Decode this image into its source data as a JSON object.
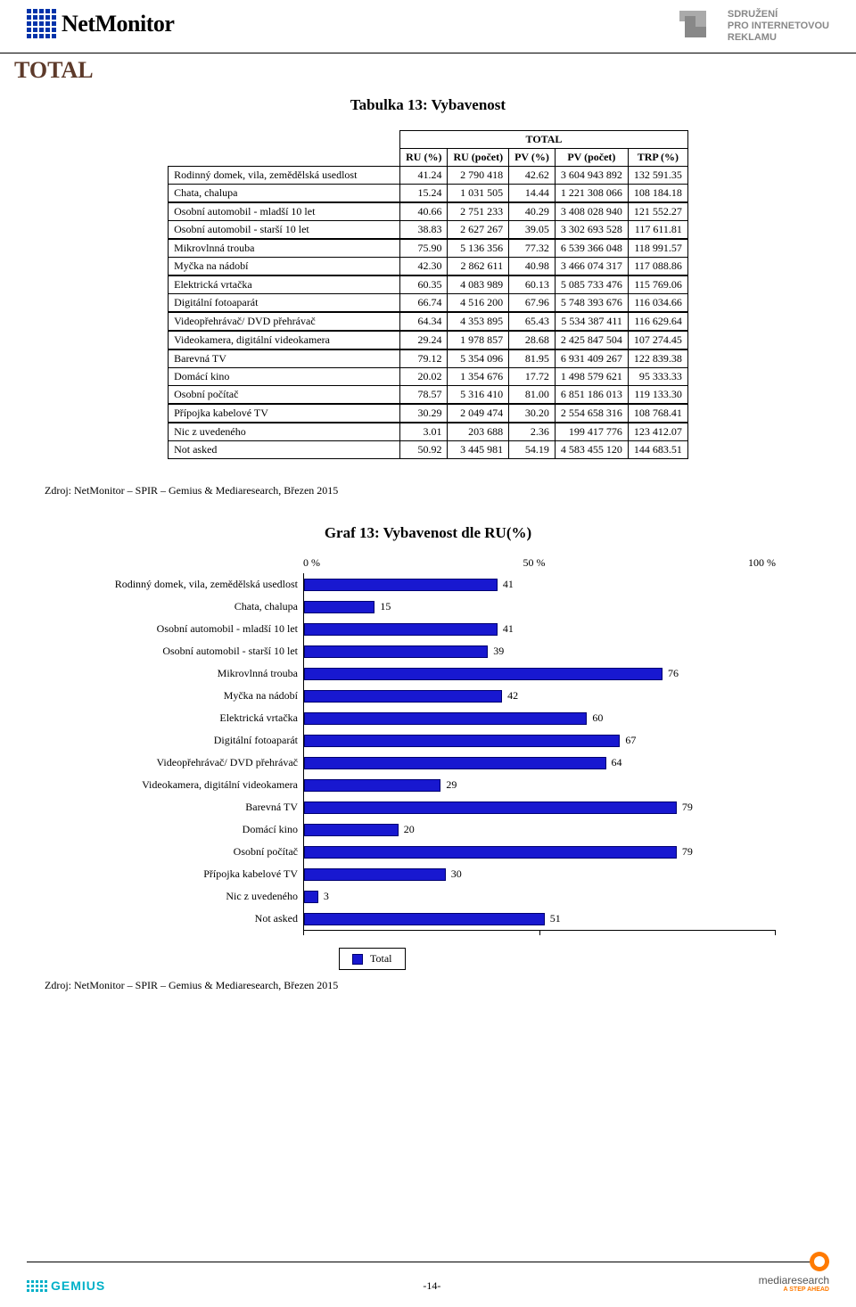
{
  "header": {
    "logo_text": "NetMonitor",
    "spir_line1": "SDRUŽENÍ",
    "spir_line2": "PRO INTERNETOVOU",
    "spir_line3": "REKLAMU"
  },
  "section_title": "TOTAL",
  "table": {
    "title": "Tabulka 13: Vybavenost",
    "super_header": "TOTAL",
    "columns": [
      "RU (%)",
      "RU (počet)",
      "PV (%)",
      "PV (počet)",
      "TRP (%)"
    ],
    "groups": [
      [
        {
          "label": "Rodinný domek, vila, zemědělská usedlost",
          "v": [
            "41.24",
            "2 790 418",
            "42.62",
            "3 604 943 892",
            "132 591.35"
          ]
        },
        {
          "label": "Chata, chalupa",
          "v": [
            "15.24",
            "1 031 505",
            "14.44",
            "1 221 308 066",
            "108 184.18"
          ]
        }
      ],
      [
        {
          "label": "Osobní automobil - mladší 10 let",
          "v": [
            "40.66",
            "2 751 233",
            "40.29",
            "3 408 028 940",
            "121 552.27"
          ]
        },
        {
          "label": "Osobní automobil - starší 10 let",
          "v": [
            "38.83",
            "2 627 267",
            "39.05",
            "3 302 693 528",
            "117 611.81"
          ]
        }
      ],
      [
        {
          "label": "Mikrovlnná trouba",
          "v": [
            "75.90",
            "5 136 356",
            "77.32",
            "6 539 366 048",
            "118 991.57"
          ]
        },
        {
          "label": "Myčka na nádobí",
          "v": [
            "42.30",
            "2 862 611",
            "40.98",
            "3 466 074 317",
            "117 088.86"
          ]
        }
      ],
      [
        {
          "label": "Elektrická vrtačka",
          "v": [
            "60.35",
            "4 083 989",
            "60.13",
            "5 085 733 476",
            "115 769.06"
          ]
        },
        {
          "label": "Digitální fotoaparát",
          "v": [
            "66.74",
            "4 516 200",
            "67.96",
            "5 748 393 676",
            "116 034.66"
          ]
        }
      ],
      [
        {
          "label": "Videopřehrávač/ DVD přehrávač",
          "v": [
            "64.34",
            "4 353 895",
            "65.43",
            "5 534 387 411",
            "116 629.64"
          ]
        }
      ],
      [
        {
          "label": "Videokamera, digitální videokamera",
          "v": [
            "29.24",
            "1 978 857",
            "28.68",
            "2 425 847 504",
            "107 274.45"
          ]
        }
      ],
      [
        {
          "label": "Barevná TV",
          "v": [
            "79.12",
            "5 354 096",
            "81.95",
            "6 931 409 267",
            "122 839.38"
          ]
        },
        {
          "label": "Domácí kino",
          "v": [
            "20.02",
            "1 354 676",
            "17.72",
            "1 498 579 621",
            "95 333.33"
          ]
        },
        {
          "label": "Osobní počítač",
          "v": [
            "78.57",
            "5 316 410",
            "81.00",
            "6 851 186 013",
            "119 133.30"
          ]
        }
      ],
      [
        {
          "label": "Přípojka kabelové TV",
          "v": [
            "30.29",
            "2 049 474",
            "30.20",
            "2 554 658 316",
            "108 768.41"
          ]
        }
      ],
      [
        {
          "label": "Nic z uvedeného",
          "v": [
            "3.01",
            "203 688",
            "2.36",
            "199 417 776",
            "123 412.07"
          ]
        },
        {
          "label": "Not asked",
          "v": [
            "50.92",
            "3 445 981",
            "54.19",
            "4 583 455 120",
            "144 683.51"
          ]
        }
      ]
    ]
  },
  "source_text": "Zdroj: NetMonitor – SPIR – Gemius & Mediaresearch, Březen 2015",
  "chart": {
    "title": "Graf 13: Vybavenost dle RU(%)",
    "axis": {
      "ticks": [
        "0 %",
        "50 %",
        "100 %"
      ],
      "max": 100
    },
    "bar_color": "#1818d0",
    "bars": [
      {
        "label": "Rodinný domek, vila, zemědělská usedlost",
        "value": 41
      },
      {
        "label": "Chata, chalupa",
        "value": 15
      },
      {
        "label": "Osobní automobil - mladší 10 let",
        "value": 41
      },
      {
        "label": "Osobní automobil - starší 10 let",
        "value": 39
      },
      {
        "label": "Mikrovlnná trouba",
        "value": 76
      },
      {
        "label": "Myčka na nádobí",
        "value": 42
      },
      {
        "label": "Elektrická vrtačka",
        "value": 60
      },
      {
        "label": "Digitální fotoaparát",
        "value": 67
      },
      {
        "label": "Videopřehrávač/ DVD přehrávač",
        "value": 64
      },
      {
        "label": "Videokamera, digitální videokamera",
        "value": 29
      },
      {
        "label": "Barevná TV",
        "value": 79
      },
      {
        "label": "Domácí kino",
        "value": 20
      },
      {
        "label": "Osobní počítač",
        "value": 79
      },
      {
        "label": "Přípojka kabelové TV",
        "value": 30
      },
      {
        "label": "Nic z uvedeného",
        "value": 3
      },
      {
        "label": "Not asked",
        "value": 51
      }
    ],
    "legend": "Total"
  },
  "footer": {
    "gemius": "GEMIUS",
    "page": "-14-",
    "mr_text": "mediaresearch",
    "mr_sub": "A STEP AHEAD"
  }
}
